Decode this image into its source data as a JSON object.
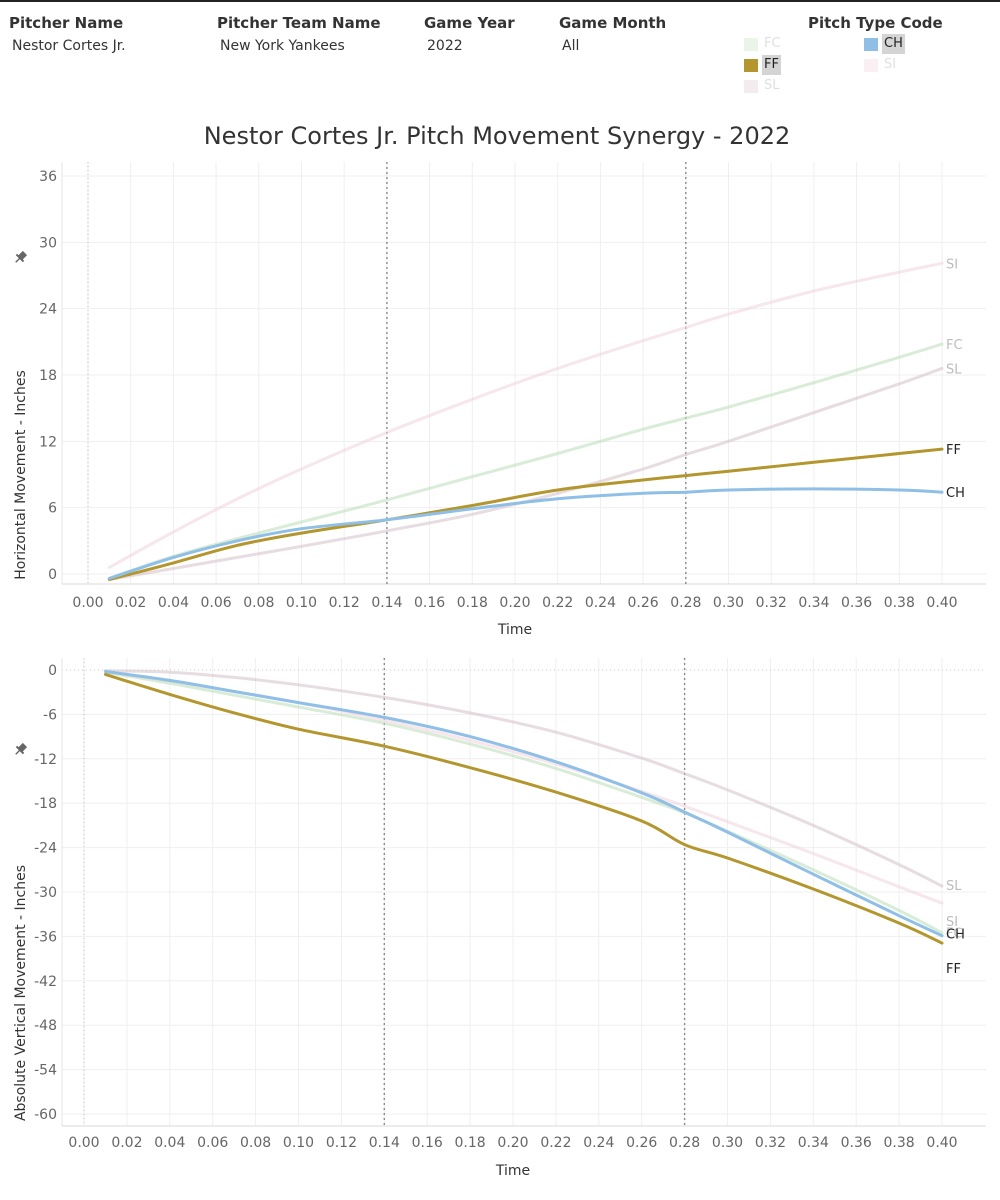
{
  "filters": [
    {
      "label": "Pitcher Name",
      "value": "Nestor Cortes Jr."
    },
    {
      "label": "Pitcher Team Name",
      "value": "New York Yankees"
    },
    {
      "label": "Game Year",
      "value": "2022"
    },
    {
      "label": "Game Month",
      "value": "All"
    }
  ],
  "pitch_type_filter": {
    "label": "Pitch Type Code",
    "items": [
      {
        "code": "FC",
        "color": "#b9dcb6",
        "selected": false
      },
      {
        "code": "CH",
        "color": "#8fbfe6",
        "selected": true
      },
      {
        "code": "FF",
        "color": "#b3962d",
        "selected": true
      },
      {
        "code": "SI",
        "color": "#f0d1da",
        "selected": false
      },
      {
        "code": "SL",
        "color": "#d3bfc9",
        "selected": false
      }
    ]
  },
  "title": "Nestor Cortes Jr. Pitch Movement Synergy - 2022",
  "icons": {
    "pin": "pin-icon"
  },
  "chart_data": [
    {
      "type": "line",
      "title": "Nestor Cortes Jr. Pitch Movement Synergy - 2022",
      "xlabel": "Time",
      "ylabel": "Horizontal Movement - Inches",
      "xlim": [
        0.0,
        0.4
      ],
      "ylim": [
        0,
        36
      ],
      "xticks": [
        "0.00",
        "0.02",
        "0.04",
        "0.06",
        "0.08",
        "0.10",
        "0.12",
        "0.14",
        "0.16",
        "0.18",
        "0.20",
        "0.22",
        "0.24",
        "0.26",
        "0.28",
        "0.30",
        "0.32",
        "0.34",
        "0.36",
        "0.38",
        "0.40"
      ],
      "yticks": [
        "0",
        "6",
        "12",
        "18",
        "24",
        "30",
        "36"
      ],
      "reference_lines_x": [
        0.14,
        0.28
      ],
      "grid": true,
      "x": [
        0.01,
        0.04,
        0.07,
        0.1,
        0.14,
        0.18,
        0.22,
        0.26,
        0.28,
        0.3,
        0.34,
        0.38,
        0.4
      ],
      "series": [
        {
          "name": "SI",
          "color": "#f0d1da",
          "highlighted": false,
          "values": [
            0.6,
            3.8,
            6.8,
            9.5,
            12.8,
            15.8,
            18.6,
            21.1,
            22.3,
            23.5,
            25.6,
            27.3,
            28.1
          ]
        },
        {
          "name": "FC",
          "color": "#b9dcb6",
          "highlighted": false,
          "values": [
            -0.4,
            1.6,
            3.2,
            4.7,
            6.7,
            8.8,
            10.9,
            13.1,
            14.1,
            15.1,
            17.3,
            19.6,
            20.8
          ]
        },
        {
          "name": "SL",
          "color": "#d3bfc9",
          "highlighted": false,
          "values": [
            -0.5,
            0.5,
            1.5,
            2.5,
            3.9,
            5.4,
            7.3,
            9.5,
            10.8,
            12.0,
            14.6,
            17.2,
            18.6
          ]
        },
        {
          "name": "FF",
          "color": "#b3962d",
          "highlighted": true,
          "values": [
            -0.5,
            1.0,
            2.6,
            3.7,
            4.9,
            6.2,
            7.6,
            8.5,
            8.9,
            9.3,
            10.1,
            10.9,
            11.3
          ]
        },
        {
          "name": "CH",
          "color": "#8fbfe6",
          "highlighted": true,
          "values": [
            -0.4,
            1.5,
            3.0,
            4.1,
            4.9,
            5.9,
            6.8,
            7.3,
            7.4,
            7.6,
            7.7,
            7.6,
            7.4
          ]
        }
      ]
    },
    {
      "type": "line",
      "xlabel": "Time",
      "ylabel": "Absolute Vertical Movement - Inches",
      "xlim": [
        0.0,
        0.4
      ],
      "ylim": [
        -60,
        0
      ],
      "xticks": [
        "0.00",
        "0.02",
        "0.04",
        "0.06",
        "0.08",
        "0.10",
        "0.12",
        "0.14",
        "0.16",
        "0.18",
        "0.20",
        "0.22",
        "0.24",
        "0.26",
        "0.28",
        "0.30",
        "0.32",
        "0.34",
        "0.36",
        "0.38",
        "0.40"
      ],
      "yticks": [
        "0",
        "-6",
        "-12",
        "-18",
        "-24",
        "-30",
        "-36",
        "-42",
        "-48",
        "-54",
        "-60"
      ],
      "reference_lines_x": [
        0.14,
        0.28
      ],
      "grid": true,
      "x": [
        0.01,
        0.04,
        0.07,
        0.1,
        0.14,
        0.18,
        0.22,
        0.26,
        0.28,
        0.3,
        0.34,
        0.38,
        0.4
      ],
      "series": [
        {
          "name": "SL",
          "color": "#d3bfc9",
          "highlighted": false,
          "values": [
            -0.1,
            -0.3,
            -1.0,
            -2.0,
            -3.7,
            -5.8,
            -8.4,
            -11.9,
            -14.0,
            -16.2,
            -21.0,
            -26.3,
            -29.2
          ]
        },
        {
          "name": "SI",
          "color": "#f0d1da",
          "highlighted": false,
          "values": [
            -0.2,
            -1.5,
            -2.9,
            -4.4,
            -6.8,
            -9.5,
            -12.7,
            -16.4,
            -18.4,
            -20.5,
            -24.8,
            -29.3,
            -31.5
          ]
        },
        {
          "name": "FC",
          "color": "#b9dcb6",
          "highlighted": false,
          "values": [
            -0.3,
            -1.8,
            -3.4,
            -5.0,
            -7.2,
            -10.0,
            -13.3,
            -17.2,
            -19.3,
            -21.8,
            -27.0,
            -32.5,
            -35.5
          ]
        },
        {
          "name": "CH",
          "color": "#8fbfe6",
          "highlighted": true,
          "values": [
            -0.2,
            -1.4,
            -2.9,
            -4.4,
            -6.4,
            -9.0,
            -12.4,
            -16.6,
            -19.2,
            -21.9,
            -27.6,
            -33.2,
            -35.9
          ]
        },
        {
          "name": "FF",
          "color": "#b3962d",
          "highlighted": true,
          "values": [
            -0.6,
            -3.3,
            -5.8,
            -8.0,
            -10.3,
            -13.2,
            -16.5,
            -20.4,
            -23.6,
            -25.4,
            -29.6,
            -34.2,
            -36.9
          ]
        }
      ]
    }
  ]
}
